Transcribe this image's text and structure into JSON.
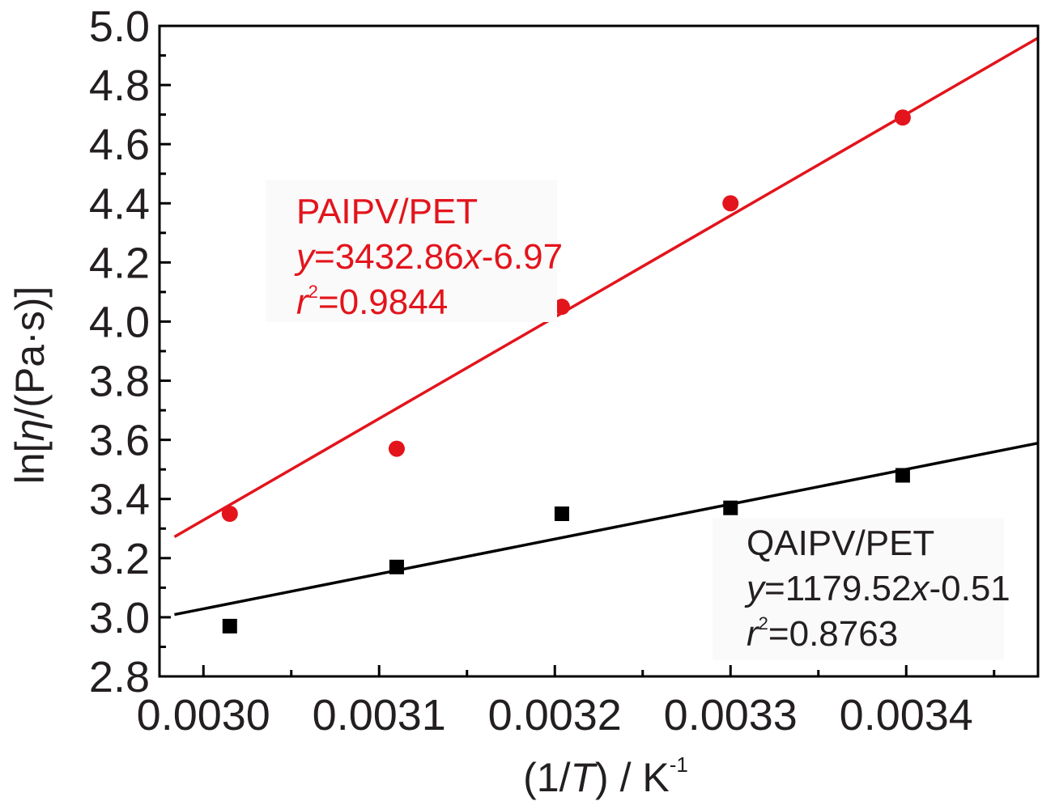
{
  "chart_data": {
    "type": "scatter",
    "xlabel_parts": [
      "(1/",
      "T",
      ") / K",
      "-1"
    ],
    "ylabel_parts": [
      "ln[",
      "η",
      "/(Pa·s)]"
    ],
    "xlim": [
      0.002975,
      0.003475
    ],
    "ylim": [
      2.8,
      5.0
    ],
    "x_ticks": [
      "0.0030",
      "0.0031",
      "0.0032",
      "0.0033",
      "0.0034"
    ],
    "x_tick_values": [
      0.003,
      0.0031,
      0.0032,
      0.0033,
      0.0034
    ],
    "y_ticks": [
      "2.8",
      "3.0",
      "3.2",
      "3.4",
      "3.6",
      "3.8",
      "4.0",
      "4.2",
      "4.4",
      "4.6",
      "4.8",
      "5.0"
    ],
    "y_tick_values": [
      2.8,
      3.0,
      3.2,
      3.4,
      3.6,
      3.8,
      4.0,
      4.2,
      4.4,
      4.6,
      4.8,
      5.0
    ],
    "grid": false,
    "series": [
      {
        "name": "PAIPV/PET",
        "color": "#e3141c",
        "marker": "circle",
        "x": [
          0.003015,
          0.00311,
          0.003204,
          0.0033,
          0.003398
        ],
        "y": [
          3.35,
          3.57,
          4.05,
          4.4,
          4.69
        ],
        "fit": {
          "slope": 3432.86,
          "intercept": -6.97
        },
        "equation_parts": [
          "y",
          "=3432.86",
          "x",
          "-6.97"
        ],
        "r2_parts": [
          "r",
          "2",
          "=0.9844"
        ]
      },
      {
        "name": "QAIPV/PET",
        "color": "#000000",
        "marker": "square",
        "x": [
          0.003015,
          0.00311,
          0.003204,
          0.0033,
          0.003398
        ],
        "y": [
          2.97,
          3.17,
          3.35,
          3.37,
          3.48
        ],
        "fit": {
          "slope": 1179.52,
          "intercept": -0.51
        },
        "equation_parts": [
          "y",
          "=1179.52",
          "x",
          "-0.51"
        ],
        "r2_parts": [
          "r",
          "2",
          "=0.8763"
        ]
      }
    ]
  }
}
